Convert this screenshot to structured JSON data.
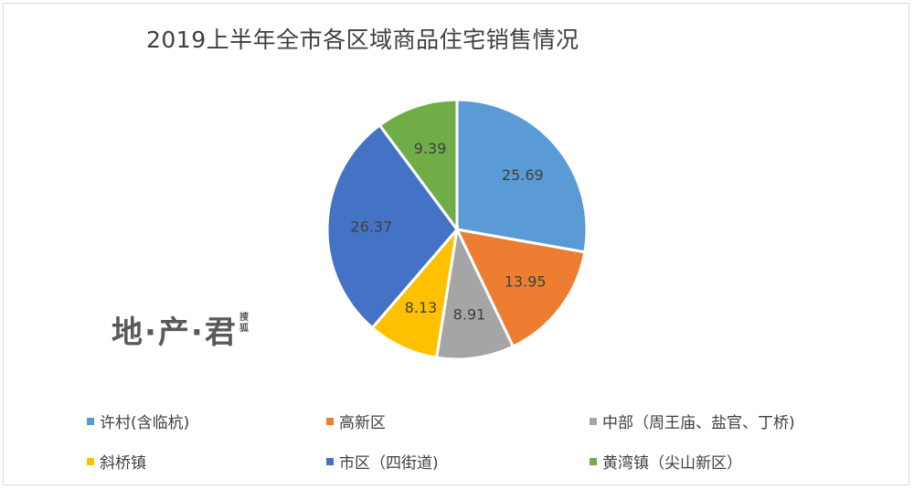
{
  "chart_data": {
    "type": "pie",
    "title": "2019上半年全市各区域商品住宅销售情况",
    "categories": [
      "许村(含临杭)",
      "高新区",
      "中部（周王庙、盐官、丁桥)",
      "斜桥镇",
      "市区（四街道)",
      "黄湾镇（尖山新区）"
    ],
    "values": [
      25.69,
      13.95,
      8.91,
      8.13,
      26.37,
      9.39
    ],
    "data_labels": [
      "25.69",
      "13.95",
      "8.91",
      "8.13",
      "26.37",
      "9.39"
    ],
    "colors": [
      "#5b9bd5",
      "#ed7d31",
      "#a5a5a5",
      "#ffc000",
      "#4472c4",
      "#70ad47"
    ],
    "legend_position": "bottom"
  },
  "watermark": {
    "text": "地·产·君",
    "sub": "搜狐"
  }
}
